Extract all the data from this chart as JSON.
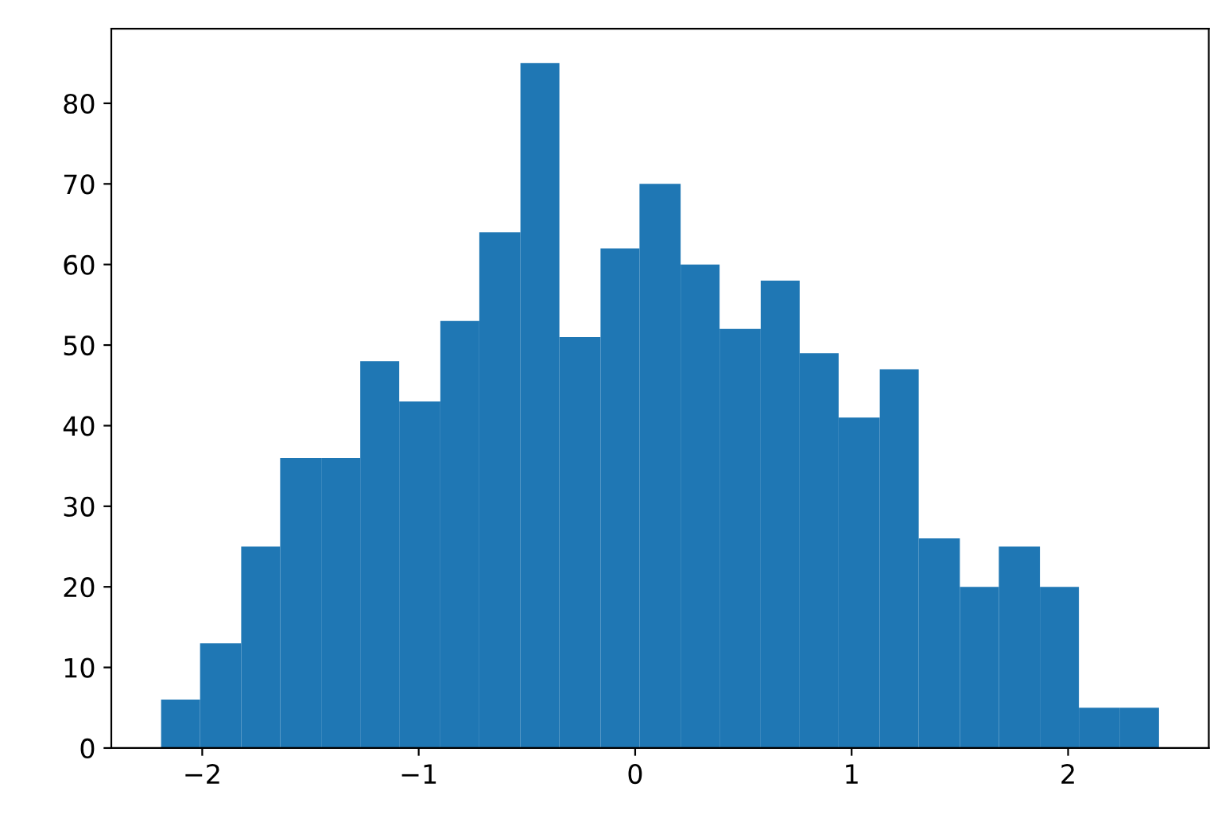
{
  "chart_data": {
    "type": "histogram",
    "bins": [
      -2.19,
      -2.01,
      -1.82,
      -1.64,
      -1.45,
      -1.27,
      -1.09,
      -0.9,
      -0.72,
      -0.53,
      -0.35,
      -0.16,
      0.02,
      0.21,
      0.39,
      0.58,
      0.76,
      0.94,
      1.13,
      1.31,
      1.5,
      1.68,
      1.87,
      2.05,
      2.24,
      2.42
    ],
    "values": [
      6,
      13,
      25,
      36,
      36,
      48,
      43,
      53,
      64,
      85,
      51,
      62,
      70,
      60,
      52,
      58,
      49,
      41,
      47,
      26,
      20,
      25,
      20,
      5,
      5
    ],
    "color": "#1f77b4",
    "xlim": [
      -2.42,
      2.65
    ],
    "xticks": [
      {
        "value": -2,
        "label": "−2"
      },
      {
        "value": -1,
        "label": "−1"
      },
      0,
      1,
      2
    ],
    "ylim": [
      0,
      89.25
    ],
    "yticks": [
      0,
      10,
      20,
      30,
      40,
      50,
      60,
      70,
      80
    ],
    "grid": false
  }
}
